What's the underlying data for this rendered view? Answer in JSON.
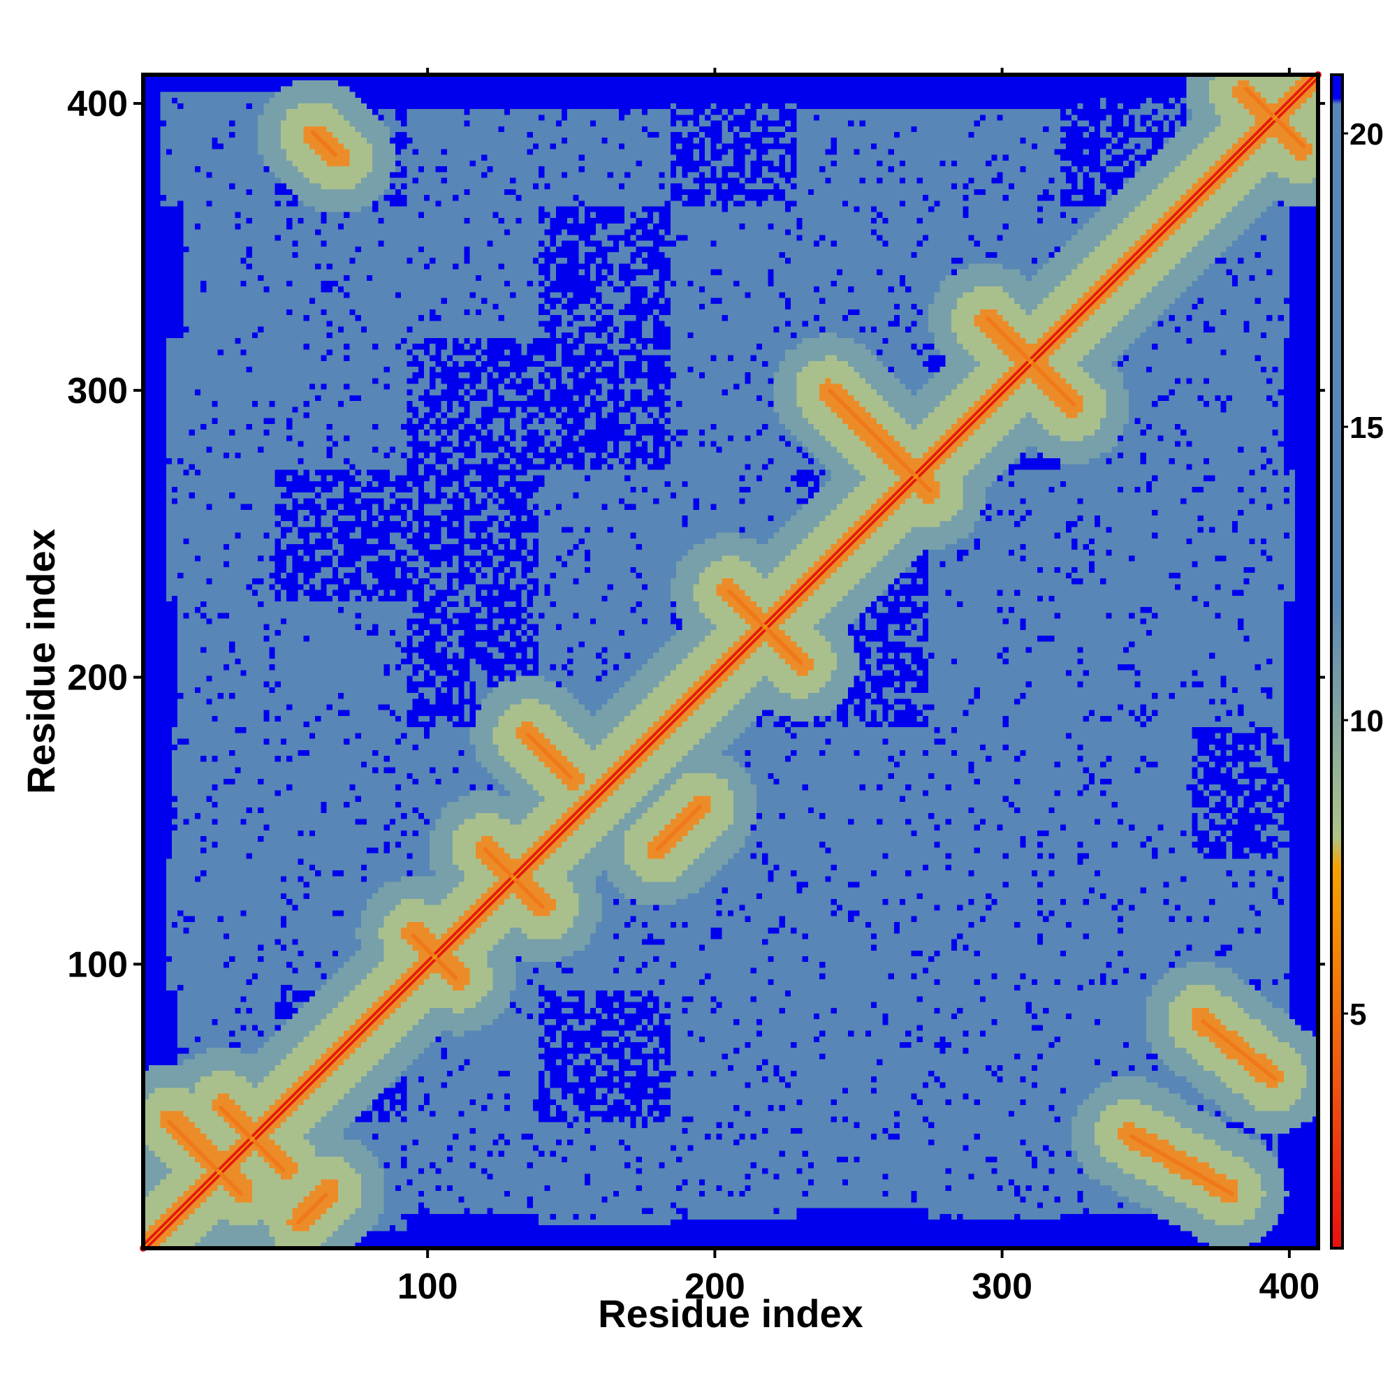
{
  "chart_data": {
    "type": "heatmap",
    "title": "",
    "xlabel": "Residue index",
    "ylabel": "Residue index",
    "n_residues": 410,
    "xlim": [
      1,
      410
    ],
    "ylim": [
      1,
      410
    ],
    "x_ticks": [
      "100",
      "200",
      "300",
      "400"
    ],
    "y_ticks": [
      "100",
      "200",
      "300",
      "400"
    ],
    "colorbar": {
      "ticks": [
        "5",
        "10",
        "15",
        "20"
      ],
      "range": [
        1,
        21
      ],
      "colors": [
        "#e81010",
        "#f05a10",
        "#f7a200",
        "#aec48a",
        "#5b87b6",
        "#0000ee"
      ]
    },
    "matrix_description_values": {
      "diagonal_value": 1,
      "background_value": 21,
      "typical_offdiagonal_value": 18
    },
    "contact_features": [
      {
        "kind": "diagonal",
        "x1": 1,
        "y1": 1,
        "x2": 410,
        "y2": 410
      },
      {
        "kind": "antiparallel",
        "x1": 10,
        "y1": 45,
        "x2": 35,
        "y2": 20
      },
      {
        "kind": "antiparallel",
        "x1": 28,
        "y1": 50,
        "x2": 50,
        "y2": 28
      },
      {
        "kind": "parallel",
        "x1": 55,
        "y1": 10,
        "x2": 65,
        "y2": 20
      },
      {
        "kind": "antiparallel",
        "x1": 60,
        "y1": 390,
        "x2": 68,
        "y2": 382
      },
      {
        "kind": "antiparallel",
        "x1": 95,
        "y1": 110,
        "x2": 110,
        "y2": 95
      },
      {
        "kind": "antiparallel",
        "x1": 120,
        "y1": 140,
        "x2": 140,
        "y2": 120
      },
      {
        "kind": "antiparallel",
        "x1": 135,
        "y1": 180,
        "x2": 150,
        "y2": 165
      },
      {
        "kind": "antiparallel",
        "x1": 180,
        "y1": 140,
        "x2": 195,
        "y2": 155
      },
      {
        "kind": "antiparallel",
        "x1": 205,
        "y1": 230,
        "x2": 230,
        "y2": 205
      },
      {
        "kind": "antiparallel",
        "x1": 240,
        "y1": 300,
        "x2": 275,
        "y2": 265
      },
      {
        "kind": "antiparallel",
        "x1": 295,
        "y1": 325,
        "x2": 325,
        "y2": 295
      },
      {
        "kind": "antiparallel",
        "x1": 385,
        "y1": 405,
        "x2": 405,
        "y2": 385
      },
      {
        "kind": "antiparallel",
        "x1": 370,
        "y1": 80,
        "x2": 395,
        "y2": 60
      },
      {
        "kind": "antiparallel",
        "x1": 345,
        "y1": 40,
        "x2": 380,
        "y2": 20
      }
    ]
  }
}
